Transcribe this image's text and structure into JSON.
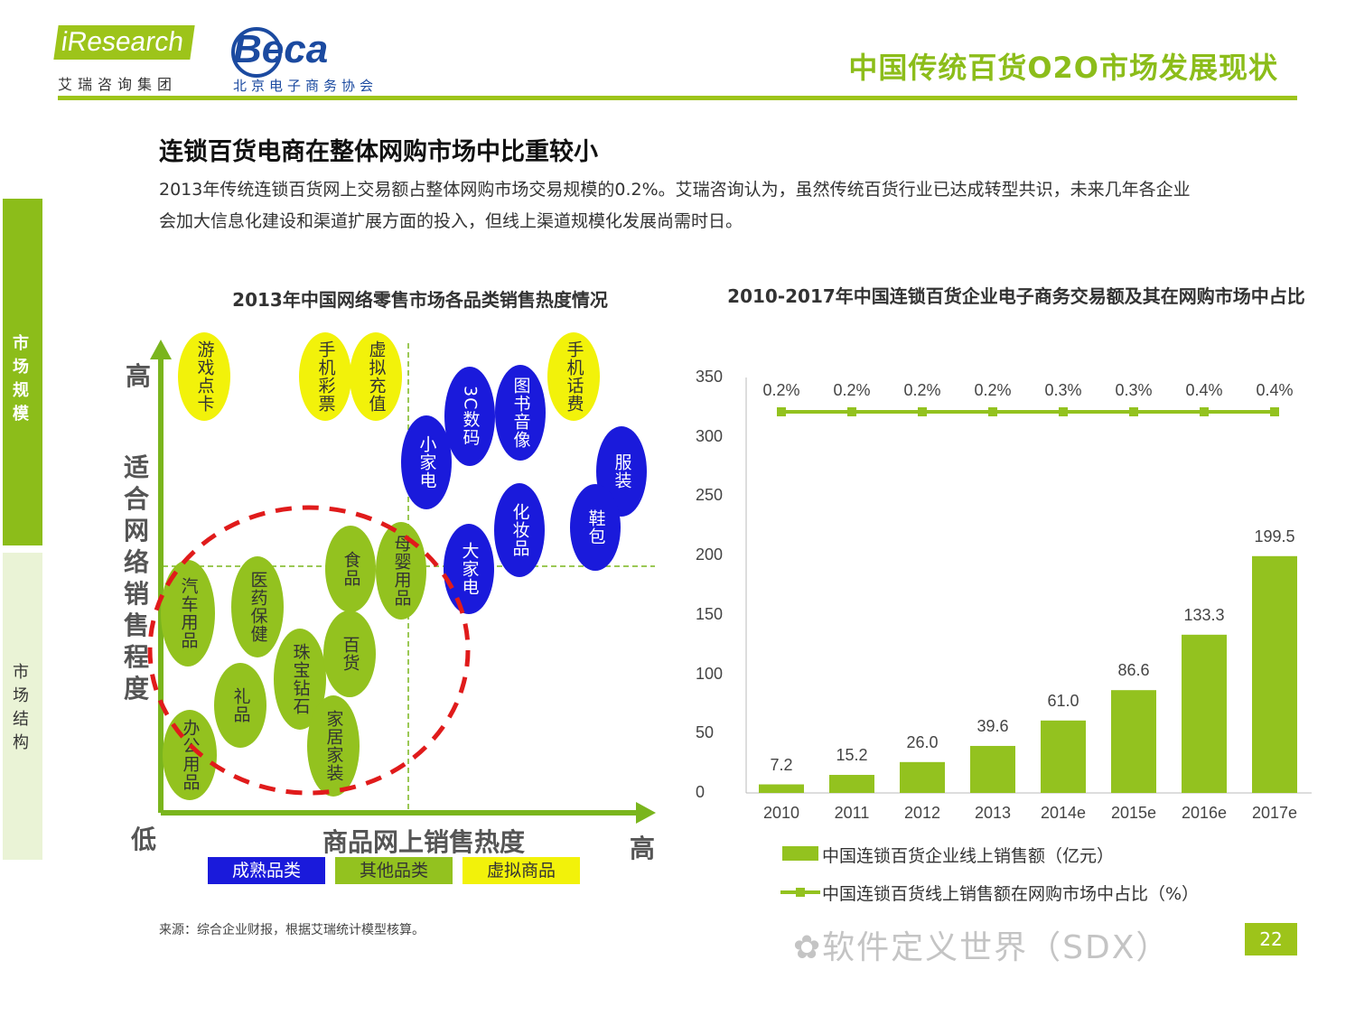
{
  "header": {
    "logo_iresearch": "iResearch",
    "logo_iresearch_sub": "艾瑞咨询集团",
    "logo_beca": "Beca",
    "logo_beca_sub": "北京电子商务协会",
    "title": "中国传统百货O2O市场发展现状"
  },
  "side_nav": {
    "items": [
      {
        "label": "市场规模"
      },
      {
        "label": "市场结构"
      }
    ]
  },
  "main_heading": "连锁百货电商在整体网购市场中比重较小",
  "intro": "2013年传统连锁百货网上交易额占整体网购市场交易规模的0.2%。艾瑞咨询认为，虽然传统百货行业已达成转型共识，未来几年各企业会加大信息化建设和渠道扩展方面的投入，但线上渠道规模化发展尚需时日。",
  "colors": {
    "accent": "#8cbd1a",
    "bar": "#93c21f",
    "mature": "#1a1adb",
    "virtual": "#f2f20a",
    "circle": "#e01b1b"
  },
  "chart_data": [
    {
      "type": "scatter",
      "title": "2013年中国网络零售市场各品类销售热度情况",
      "ylabel": "适合网络销售程度",
      "xlabel": "商品网上销售热度",
      "x_low": "低",
      "x_high": "高",
      "y_high": "高",
      "legend": [
        "成熟品类",
        "其他品类",
        "虚拟商品"
      ],
      "bubbles": [
        {
          "label": "游戏点卡",
          "group": "虚拟商品"
        },
        {
          "label": "手机彩票",
          "group": "虚拟商品"
        },
        {
          "label": "虚拟充值",
          "group": "虚拟商品"
        },
        {
          "label": "手机话费",
          "group": "虚拟商品"
        },
        {
          "label": "3C数码",
          "group": "成熟品类"
        },
        {
          "label": "图书音像",
          "group": "成熟品类"
        },
        {
          "label": "小家电",
          "group": "成熟品类"
        },
        {
          "label": "服装",
          "group": "成熟品类"
        },
        {
          "label": "鞋包",
          "group": "成熟品类"
        },
        {
          "label": "化妆品",
          "group": "成熟品类"
        },
        {
          "label": "大家电",
          "group": "成熟品类"
        },
        {
          "label": "母婴用品",
          "group": "其他品类"
        },
        {
          "label": "食品",
          "group": "其他品类"
        },
        {
          "label": "汽车用品",
          "group": "其他品类"
        },
        {
          "label": "医药保健",
          "group": "其他品类"
        },
        {
          "label": "珠宝钻石",
          "group": "其他品类"
        },
        {
          "label": "百货",
          "group": "其他品类"
        },
        {
          "label": "礼品",
          "group": "其他品类"
        },
        {
          "label": "家居家装",
          "group": "其他品类"
        },
        {
          "label": "办公用品",
          "group": "其他品类"
        }
      ]
    },
    {
      "type": "bar",
      "title": "2010-2017年中国连锁百货企业电子商务交易额及其在网购市场中占比",
      "categories": [
        "2010",
        "2011",
        "2012",
        "2013",
        "2014e",
        "2015e",
        "2016e",
        "2017e"
      ],
      "series": [
        {
          "name": "中国连锁百货企业线上销售额（亿元）",
          "values": [
            7.2,
            15.2,
            26.0,
            39.6,
            61.0,
            86.6,
            133.3,
            199.5
          ],
          "labels": [
            "7.2",
            "15.2",
            "26.0",
            "39.6",
            "61.0",
            "86.6",
            "133.3",
            "199.5"
          ]
        },
        {
          "name": "中国连锁百货线上销售额在网购市场中占比（%）",
          "values": [
            0.2,
            0.2,
            0.2,
            0.2,
            0.3,
            0.3,
            0.4,
            0.4
          ],
          "labels": [
            "0.2%",
            "0.2%",
            "0.2%",
            "0.2%",
            "0.3%",
            "0.3%",
            "0.4%",
            "0.4%"
          ]
        }
      ],
      "yticks": [
        "0",
        "50",
        "100",
        "150",
        "200",
        "250",
        "300",
        "350"
      ],
      "ylim": [
        0,
        350
      ]
    }
  ],
  "footer": {
    "source": "来源：综合企业财报，根据艾瑞统计模型核算。",
    "watermark": "软件定义世界（SDX）",
    "page": "22"
  }
}
